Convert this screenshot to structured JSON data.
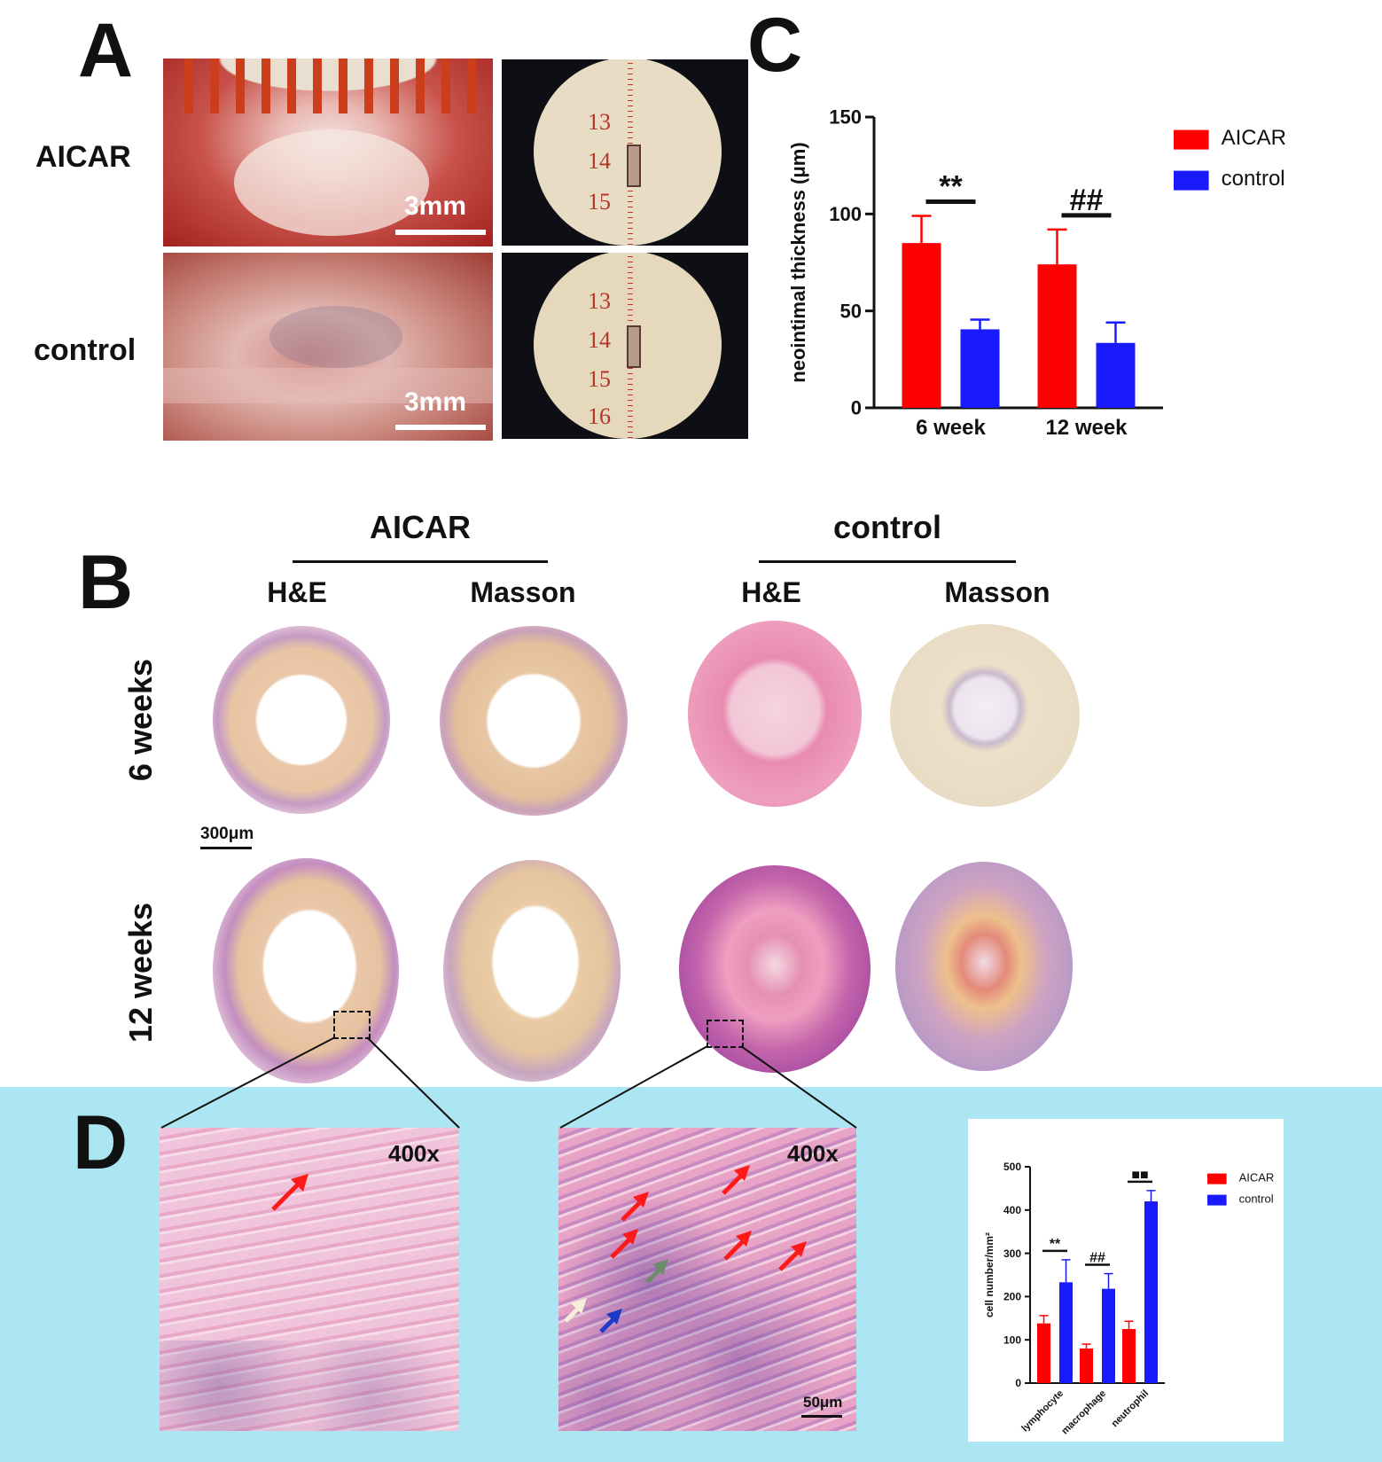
{
  "panels": {
    "a": "A",
    "b": "B",
    "c": "C",
    "d": "D"
  },
  "panel_a": {
    "row_labels": [
      "AICAR",
      "control"
    ],
    "scale_label": "3mm",
    "ruler_numbers": [
      "13",
      "14",
      "15",
      "16"
    ]
  },
  "panel_b": {
    "group_headers": [
      "AICAR",
      "control"
    ],
    "stain_labels": [
      "H&E",
      "Masson",
      "H&E",
      "Masson"
    ],
    "row_labels": [
      "6 weeks",
      "12 weeks"
    ],
    "scale_label": "300μm"
  },
  "panel_d": {
    "magnification": "400x",
    "scale_label": "50μm",
    "background_color": "#ace6f2"
  },
  "colors": {
    "aicar": "#ff0000",
    "control": "#1a1aff"
  },
  "chart_data": [
    {
      "type": "bar",
      "panel": "C",
      "categories": [
        "6 week",
        "12 week"
      ],
      "series": [
        {
          "name": "AICAR",
          "values": [
            85,
            74
          ],
          "errors": [
            14,
            18
          ],
          "color": "#ff0000"
        },
        {
          "name": "control",
          "values": [
            40.5,
            33.5
          ],
          "errors": [
            5,
            10.5
          ],
          "color": "#1a1aff"
        }
      ],
      "ylabel": "neointimal thickness (μm)",
      "ylim": [
        0,
        150
      ],
      "yticks": [
        0,
        50,
        100,
        150
      ],
      "significance": [
        "**",
        "##"
      ],
      "legend": "top-right",
      "grid": false
    },
    {
      "type": "bar",
      "panel": "D",
      "categories": [
        "lymphocyte",
        "macrophage",
        "neutrophil"
      ],
      "series": [
        {
          "name": "AICAR",
          "values": [
            138,
            80,
            125
          ],
          "errors": [
            18,
            10,
            18
          ],
          "color": "#ff0000"
        },
        {
          "name": "control",
          "values": [
            233,
            218,
            420
          ],
          "errors": [
            52,
            35,
            25
          ],
          "color": "#1a1aff"
        }
      ],
      "ylabel": "cell number/mm²",
      "ylim": [
        0,
        500
      ],
      "yticks": [
        0,
        100,
        200,
        300,
        400,
        500
      ],
      "significance": [
        "**",
        "##",
        "■■"
      ],
      "legend": "top-right",
      "grid": false
    }
  ]
}
